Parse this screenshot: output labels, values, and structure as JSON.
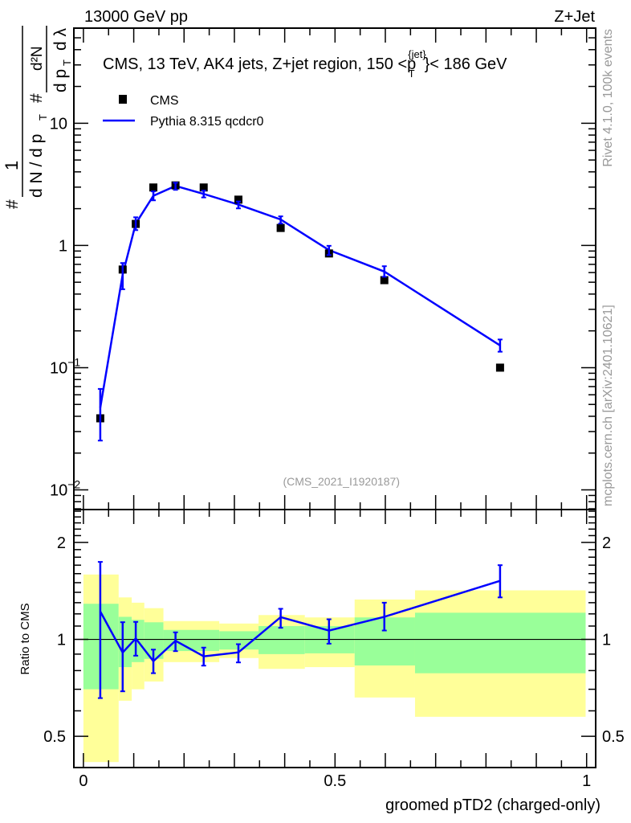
{
  "header": {
    "left": "13000 GeV pp",
    "right": "Z+Jet"
  },
  "side_labels": {
    "rivet": "Rivet 4.1.0,  100k events",
    "mcplots": "mcplots.cern.ch [arXiv:2401.10621]"
  },
  "colors": {
    "data": "#000000",
    "mc": "#0000ff",
    "band_outer": "#ffff99",
    "band_inner": "#99ff99",
    "side_text": "#999999"
  },
  "chart_data": [
    {
      "type": "line",
      "title": "CMS, 13 TeV, AK4 jets, Z+jet region, 150 <p_T^{jet}< 186 GeV",
      "title_main": "CMS, 13 TeV, AK4 jets, Z+jet region, 150 <p",
      "title_sup": "{jet}",
      "title_sub": "T",
      "title_end": "}< 186 GeV",
      "ylabel": "1/(# dN/dp_T) # d²N/(dp_T dλ)",
      "ylabel_parts": {
        "num1": "1",
        "den1": "d N / d p",
        "hash": "#",
        "num2": "d²N",
        "den2": "d p",
        "dl": "d λ",
        "T": "T"
      },
      "yscale": "log",
      "xlim": [
        -0.019,
        1.018
      ],
      "ylim": [
        0.0069,
        60
      ],
      "yticks": [
        {
          "v": 0.01,
          "base": "10",
          "exp": "−2"
        },
        {
          "v": 0.1,
          "base": "10",
          "exp": "−1"
        },
        {
          "v": 1,
          "base": "1",
          "exp": ""
        },
        {
          "v": 10,
          "base": "10",
          "exp": ""
        }
      ],
      "annotation": "(CMS_2021_I1920187)",
      "legend": {
        "position": "top-left",
        "entries": [
          "CMS",
          "Pythia 8.315 qcdcr0"
        ]
      },
      "x": [
        0.0335,
        0.078,
        0.104,
        0.139,
        0.183,
        0.239,
        0.308,
        0.392,
        0.488,
        0.598,
        0.828
      ],
      "series": [
        {
          "name": "CMS",
          "values": [
            0.0385,
            0.635,
            1.5,
            2.98,
            3.1,
            2.98,
            2.37,
            1.39,
            0.86,
            0.52,
            0.1
          ]
        },
        {
          "name": "Pythia 8.315 qcdcr0",
          "values": [
            0.047,
            0.578,
            1.51,
            2.55,
            3.07,
            2.64,
            2.16,
            1.63,
            0.916,
            0.611,
            0.152
          ],
          "err_hi": [
            0.067,
            0.718,
            1.7,
            2.77,
            3.26,
            2.81,
            2.29,
            1.73,
            0.993,
            0.676,
            0.17
          ],
          "err_lo": [
            0.0253,
            0.438,
            1.335,
            2.34,
            2.85,
            2.47,
            2.01,
            1.51,
            0.834,
            0.554,
            0.135
          ]
        }
      ]
    },
    {
      "type": "line",
      "ylabel": "Ratio to CMS",
      "xlabel": "groomed pTD2 (charged-only)",
      "yscale": "log",
      "ylim": [
        0.4,
        2.53
      ],
      "xlim": [
        -0.019,
        1.018
      ],
      "yticks": [
        {
          "v": 0.5,
          "label": "0.5"
        },
        {
          "v": 1,
          "label": "1"
        },
        {
          "v": 2,
          "label": "2"
        }
      ],
      "xticks": [
        {
          "v": 0,
          "label": "0"
        },
        {
          "v": 0.5,
          "label": "0.5"
        },
        {
          "v": 1,
          "label": "1"
        }
      ],
      "bands": {
        "edges": [
          0,
          0.07,
          0.096,
          0.121,
          0.159,
          0.27,
          0.348,
          0.44,
          0.539,
          0.659,
          0.998
        ],
        "outer_hi": [
          1.59,
          1.35,
          1.3,
          1.25,
          1.14,
          1.12,
          1.19,
          1.17,
          1.33,
          1.42
        ],
        "outer_lo": [
          0.416,
          0.645,
          0.7,
          0.74,
          0.85,
          0.875,
          0.81,
          0.82,
          0.66,
          0.575
        ],
        "inner_hi": [
          1.29,
          1.175,
          1.15,
          1.13,
          1.07,
          1.06,
          1.1,
          1.1,
          1.17,
          1.21
        ],
        "inner_lo": [
          0.7,
          0.82,
          0.85,
          0.87,
          0.92,
          0.93,
          0.9,
          0.905,
          0.83,
          0.785
        ]
      }
    }
  ]
}
